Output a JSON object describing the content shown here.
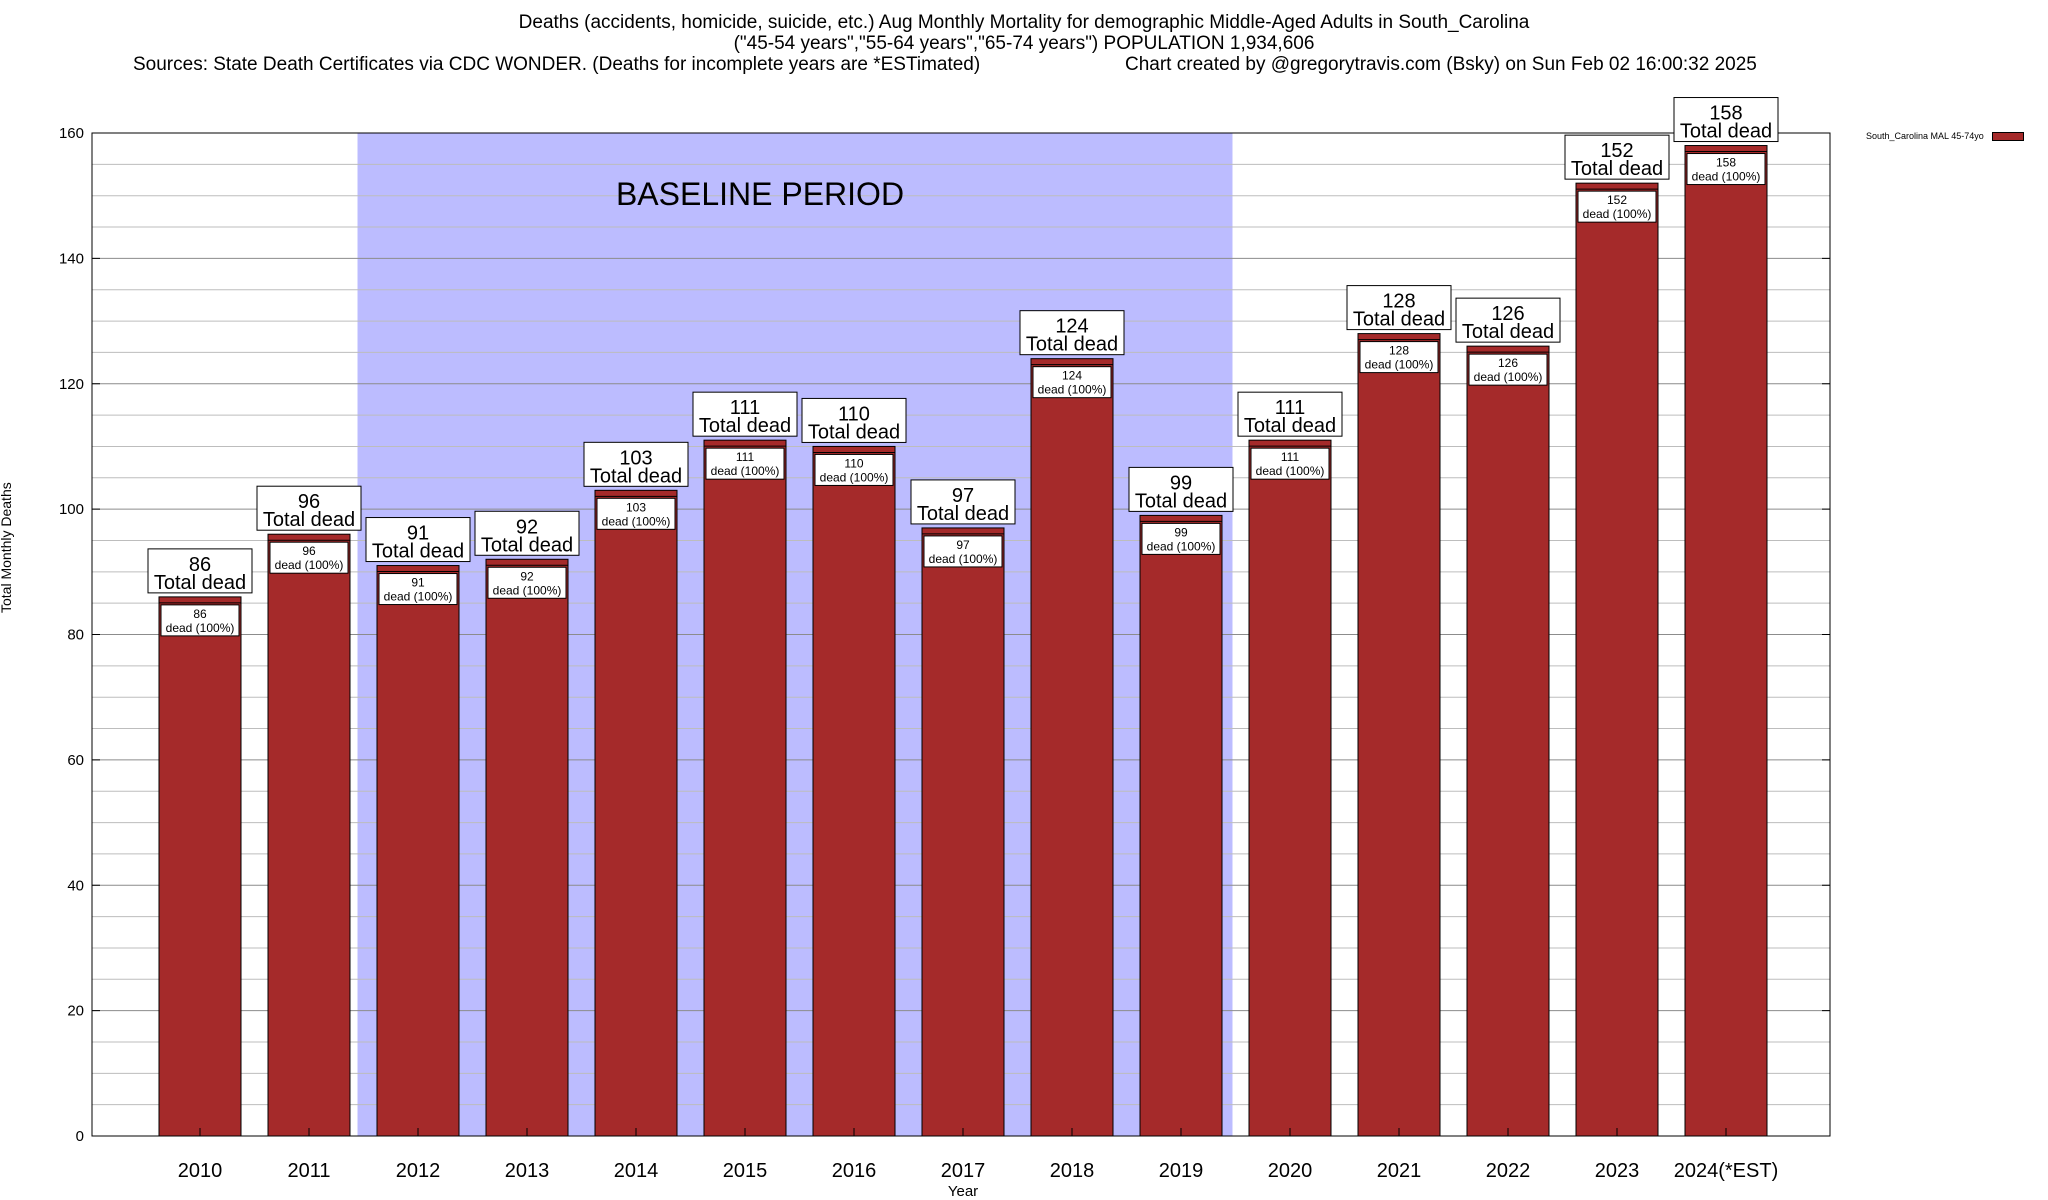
{
  "header": {
    "title_line1": "Deaths (accidents, homicide, suicide, etc.) Aug Monthly Mortality for demographic Middle-Aged Adults in South_Carolina",
    "title_line2": "(\"45-54 years\",\"55-64 years\",\"65-74 years\") POPULATION 1,934,606",
    "sources": "Sources: State Death Certificates via CDC WONDER. (Deaths for incomplete years are *ESTimated)",
    "credit": "Chart created by @gregorytravis.com (Bsky) on Sun Feb 02 16:00:32 2025"
  },
  "chart_data": {
    "type": "bar",
    "categories": [
      "2010",
      "2011",
      "2012",
      "2013",
      "2014",
      "2015",
      "2016",
      "2017",
      "2018",
      "2019",
      "2020",
      "2021",
      "2022",
      "2023",
      "2024(*EST)"
    ],
    "series": [
      {
        "name": "South_Carolina MAL 45-74yo",
        "values": [
          86,
          96,
          91,
          92,
          103,
          111,
          110,
          97,
          124,
          99,
          111,
          128,
          126,
          152,
          158
        ]
      }
    ],
    "xlabel": "Year",
    "ylabel": "Total Monthly Deaths",
    "ylim": [
      0,
      160
    ],
    "yticks": [
      0,
      20,
      40,
      60,
      80,
      100,
      120,
      140,
      160
    ],
    "grid": true,
    "legend_position": "top-right",
    "total_label": "Total dead",
    "inner_label": "dead (100%)",
    "baseline": {
      "label": "BASELINE PERIOD",
      "start": "2012",
      "end": "2019",
      "color": "#bcbcff"
    },
    "bar_color": "#a52a2a"
  }
}
